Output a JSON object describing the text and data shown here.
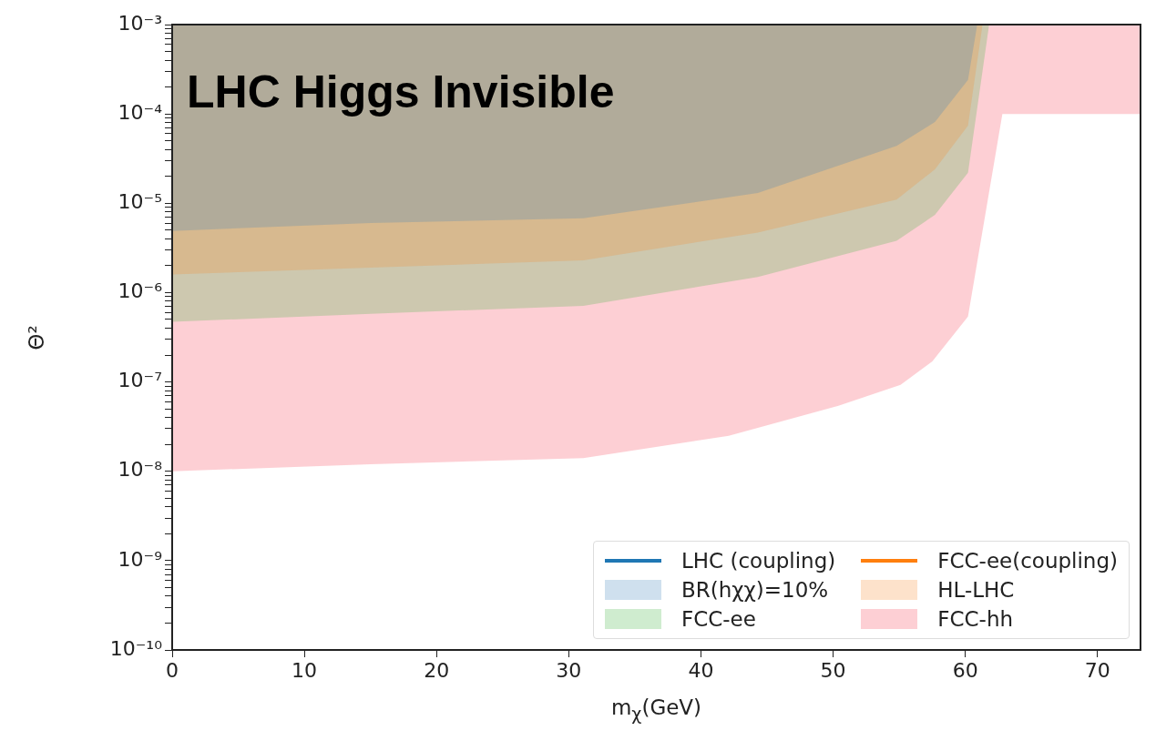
{
  "chart_data": {
    "type": "area",
    "title": "LHC Higgs Invisible",
    "xlabel": "m$_{χ}$(GeV)",
    "ylabel": "Θ²",
    "log": "y",
    "grid": false,
    "legend": "bottom right",
    "xlim": [
      0,
      73.25
    ],
    "xticks": [
      0,
      10,
      20,
      30,
      40,
      50,
      60,
      70
    ],
    "ylim": [
      1e-10,
      0.001
    ],
    "yticks": [
      {
        "value": 1e-10,
        "label": "10⁻¹⁰"
      },
      {
        "value": 2e-10,
        "label": null
      },
      {
        "value": 3e-10,
        "label": null
      },
      {
        "value": 4e-10,
        "label": null
      },
      {
        "value": 5e-10,
        "label": null
      },
      {
        "value": 6e-10,
        "label": null
      },
      {
        "value": 7e-10,
        "label": null
      },
      {
        "value": 8e-10,
        "label": null
      },
      {
        "value": 9e-10,
        "label": null
      },
      {
        "value": 1e-09,
        "label": "10⁻⁹"
      },
      {
        "value": 2e-09,
        "label": null
      },
      {
        "value": 3e-09,
        "label": null
      },
      {
        "value": 4e-09,
        "label": null
      },
      {
        "value": 5e-09,
        "label": null
      },
      {
        "value": 6e-09,
        "label": null
      },
      {
        "value": 7e-09,
        "label": null
      },
      {
        "value": 8e-09,
        "label": null
      },
      {
        "value": 9e-09,
        "label": null
      },
      {
        "value": 1e-08,
        "label": "10⁻⁸"
      },
      {
        "value": 2e-08,
        "label": null
      },
      {
        "value": 3e-08,
        "label": null
      },
      {
        "value": 4e-08,
        "label": null
      },
      {
        "value": 5e-08,
        "label": null
      },
      {
        "value": 6e-08,
        "label": null
      },
      {
        "value": 7e-08,
        "label": null
      },
      {
        "value": 8e-08,
        "label": null
      },
      {
        "value": 9e-08,
        "label": null
      },
      {
        "value": 1e-07,
        "label": "10⁻⁷"
      },
      {
        "value": 2e-07,
        "label": null
      },
      {
        "value": 3e-07,
        "label": null
      },
      {
        "value": 4e-07,
        "label": null
      },
      {
        "value": 5e-07,
        "label": null
      },
      {
        "value": 6e-07,
        "label": null
      },
      {
        "value": 7e-07,
        "label": null
      },
      {
        "value": 8e-07,
        "label": null
      },
      {
        "value": 9e-07,
        "label": null
      },
      {
        "value": 1e-06,
        "label": "10⁻⁶"
      },
      {
        "value": 2e-06,
        "label": null
      },
      {
        "value": 3e-06,
        "label": null
      },
      {
        "value": 4e-06,
        "label": null
      },
      {
        "value": 5e-06,
        "label": null
      },
      {
        "value": 6e-06,
        "label": null
      },
      {
        "value": 7e-06,
        "label": null
      },
      {
        "value": 8e-06,
        "label": null
      },
      {
        "value": 9e-06,
        "label": null
      },
      {
        "value": 1e-05,
        "label": "10⁻⁵"
      },
      {
        "value": 2e-05,
        "label": null
      },
      {
        "value": 3e-05,
        "label": null
      },
      {
        "value": 4e-05,
        "label": null
      },
      {
        "value": 5e-05,
        "label": null
      },
      {
        "value": 6e-05,
        "label": null
      },
      {
        "value": 7e-05,
        "label": null
      },
      {
        "value": 8e-05,
        "label": null
      },
      {
        "value": 9e-05,
        "label": null
      },
      {
        "value": 0.0001,
        "label": "10⁻⁴"
      },
      {
        "value": 0.0002,
        "label": null
      },
      {
        "value": 0.0003,
        "label": null
      },
      {
        "value": 0.0004,
        "label": null
      },
      {
        "value": 0.0005,
        "label": null
      },
      {
        "value": 0.0006,
        "label": null
      },
      {
        "value": 0.0007,
        "label": null
      },
      {
        "value": 0.0008,
        "label": null
      },
      {
        "value": 0.0009,
        "label": null
      },
      {
        "value": 0.001,
        "label": "10⁻³"
      }
    ],
    "series": [
      {
        "name": "LHC (coupling)",
        "type": "line",
        "color": "#1f77b4"
      },
      {
        "name": "FCC-ee(coupling)",
        "type": "line",
        "color": "#ff7f0e"
      },
      {
        "name": "BR(hχχ)=10%",
        "color": "#cfe0ee",
        "x": [
          0,
          0,
          15,
          31.1,
          44.3,
          54.8,
          57.7,
          60.2,
          60.9
        ],
        "values": [
          0.001,
          4.9e-06,
          6e-06,
          6.8e-06,
          1.3e-05,
          4.4e-05,
          8.1e-05,
          0.00024,
          0.001
        ]
      },
      {
        "name": "HL-LHC",
        "color": "#fde2cb",
        "x": [
          0,
          0,
          15,
          31.1,
          44.3,
          54.8,
          57.7,
          60.2,
          61.3
        ],
        "values": [
          0.001,
          1.6e-06,
          1.9e-06,
          2.3e-06,
          4.7e-06,
          1.1e-05,
          2.4e-05,
          7.4e-05,
          0.001
        ]
      },
      {
        "name": "FCC-ee",
        "color": "#cfeccf",
        "x": [
          0,
          0,
          15,
          31.1,
          44.3,
          54.8,
          57.7,
          60.2,
          61.8
        ],
        "values": [
          0.001,
          4.7e-07,
          5.8e-07,
          7.1e-07,
          1.5e-06,
          3.8e-06,
          7.4e-06,
          2.2e-05,
          0.001
        ]
      },
      {
        "name": "FCC-hh",
        "color": "#fdcfd4",
        "x": [
          0,
          0,
          15,
          31.1,
          42.1,
          50.4,
          55.1,
          57.5,
          60.2,
          62.8,
          73.25,
          73.25
        ],
        "values": [
          0.001,
          1e-08,
          1.2e-08,
          1.4e-08,
          2.5e-08,
          5.4e-08,
          9.3e-08,
          1.7e-07,
          5.4e-07,
          0.0001,
          0.0001,
          0.001
        ]
      }
    ]
  }
}
